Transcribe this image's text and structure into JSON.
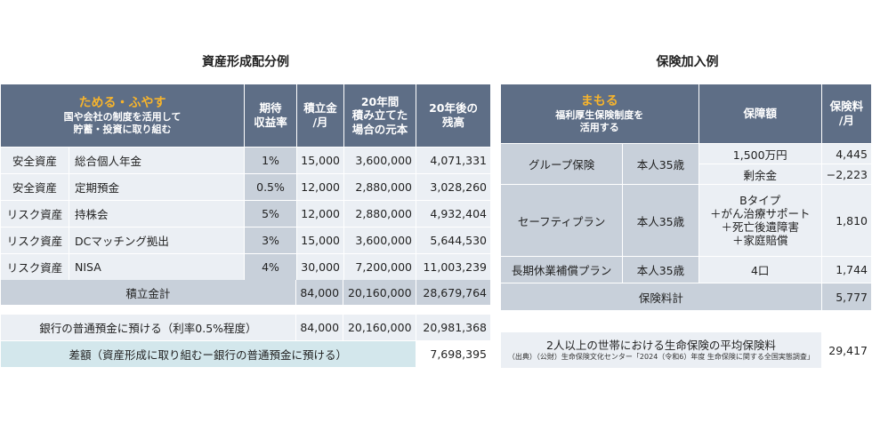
{
  "left": {
    "title": "資産形成配分例",
    "header": {
      "main": "ためる・ふやす",
      "sub1": "国や会社の制度を活用して",
      "sub2": "貯蓄・投資に取り組む",
      "rate1": "期待",
      "rate2": "収益率",
      "monthly1": "積立金",
      "monthly2": "/月",
      "principal1": "20年間",
      "principal2": "積み立てた",
      "principal3": "場合の元本",
      "balance1": "20年後の",
      "balance2": "残高"
    },
    "rows": [
      {
        "type": "安全資産",
        "name": "総合個人年金",
        "rate": "1%",
        "monthly": "15,000",
        "principal": "3,600,000",
        "balance": "4,071,331"
      },
      {
        "type": "安全資産",
        "name": "定期預金",
        "rate": "0.5%",
        "monthly": "12,000",
        "principal": "2,880,000",
        "balance": "3,028,260"
      },
      {
        "type": "リスク資産",
        "name": "持株会",
        "rate": "5%",
        "monthly": "12,000",
        "principal": "2,880,000",
        "balance": "4,932,404"
      },
      {
        "type": "リスク資産",
        "name": "DCマッチング拠出",
        "rate": "3%",
        "monthly": "15,000",
        "principal": "3,600,000",
        "balance": "5,644,530"
      },
      {
        "type": "リスク資産",
        "name": "NISA",
        "rate": "4%",
        "monthly": "30,000",
        "principal": "7,200,000",
        "balance": "11,003,239"
      }
    ],
    "total": {
      "label": "積立金計",
      "monthly": "84,000",
      "principal": "20,160,000",
      "balance": "28,679,764"
    },
    "bank": {
      "label": "銀行の普通預金に預ける（利率0.5%程度）",
      "monthly": "84,000",
      "principal": "20,160,000",
      "balance": "20,981,368"
    },
    "diff": {
      "label": "差額（資産形成に取り組むー銀行の普通預金に預ける）",
      "value": "7,698,395"
    }
  },
  "right": {
    "title": "保険加入例",
    "header": {
      "main": "まもる",
      "sub1": "福利厚生保険制度を",
      "sub2": "活用する",
      "coverage": "保障額",
      "premium1": "保険料",
      "premium2": "/月"
    },
    "group": {
      "name": "グループ保険",
      "who": "本人35歳",
      "cov1": "1,500万円",
      "prem1": "4,445",
      "cov2": "剰余金",
      "prem2": "−2,223"
    },
    "safety": {
      "name": "セーフティプラン",
      "who": "本人35歳",
      "cov_l1": "Bタイプ",
      "cov_l2": "＋がん治療サポート",
      "cov_l3": "＋死亡後遺障害",
      "cov_l4": "＋家庭賠償",
      "prem": "1,810"
    },
    "longterm": {
      "name": "長期休業補償プラン",
      "who": "本人35歳",
      "cov": "4口",
      "prem": "1,744"
    },
    "total": {
      "label": "保険料計",
      "value": "5,777"
    },
    "average": {
      "label": "2人以上の世帯における生命保険の平均保険料",
      "source": "（出典）（公財）生命保険文化センター「2024（令和6）年度 生命保険に関する全国実態調査」",
      "value": "29,417"
    }
  },
  "colors": {
    "header": "#5e6e86",
    "accent": "#f7b42c",
    "cell": "#ebeff4",
    "total": "#c8d0da",
    "diff": "#d3e7ec"
  }
}
